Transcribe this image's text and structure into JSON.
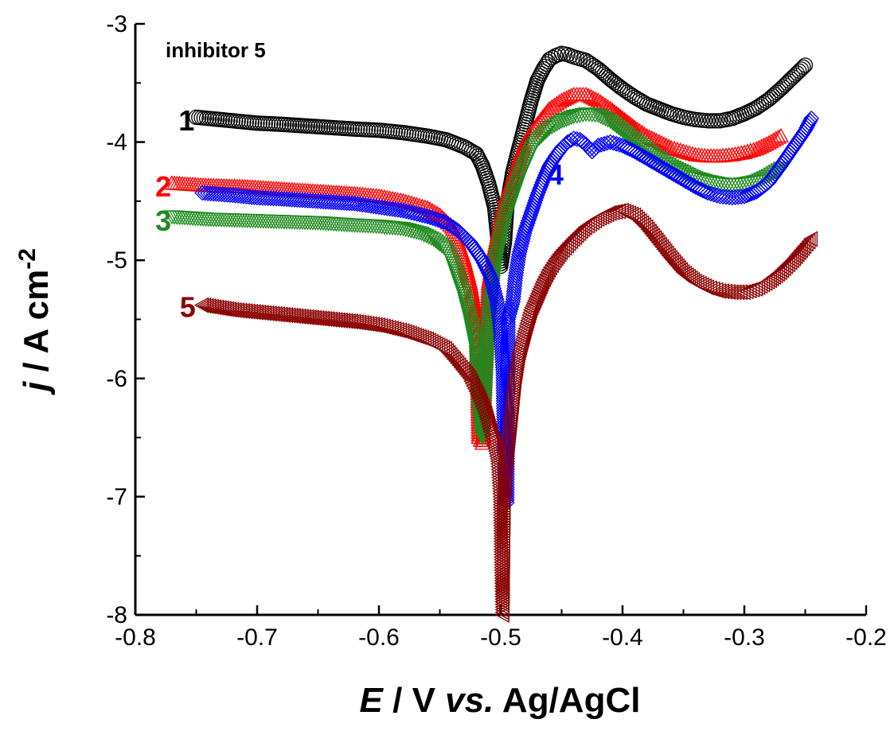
{
  "chart_data": {
    "type": "scatter",
    "title": "",
    "annotation": "inhibitor 5",
    "xlabel": {
      "italic": "E",
      "rest": " / V ",
      "italic2": "vs.",
      "rest2": " Ag/AgCl"
    },
    "ylabel": {
      "italic": "j",
      "rest": " / A cm",
      "sup": "-2"
    },
    "xlim": [
      -0.8,
      -0.2
    ],
    "ylim": [
      -8,
      -3
    ],
    "xticks": [
      -0.8,
      -0.7,
      -0.6,
      -0.5,
      -0.4,
      -0.3,
      -0.2
    ],
    "yticks": [
      -8,
      -7,
      -6,
      -5,
      -4,
      -3
    ],
    "xtick_labels": [
      "-0.8",
      "-0.7",
      "-0.6",
      "-0.5",
      "-0.4",
      "-0.3",
      "-0.2"
    ],
    "ytick_labels": [
      "-8",
      "-7",
      "-6",
      "-5",
      "-4",
      "-3"
    ],
    "grid": false,
    "series": [
      {
        "name": "1",
        "color": "#000000",
        "marker": "circle",
        "label_pos": [
          -0.758,
          -3.82
        ],
        "x": [
          -0.75,
          -0.72,
          -0.7,
          -0.68,
          -0.65,
          -0.62,
          -0.6,
          -0.58,
          -0.56,
          -0.545,
          -0.53,
          -0.52,
          -0.515,
          -0.51,
          -0.505,
          -0.5,
          -0.497,
          -0.495,
          -0.49,
          -0.485,
          -0.48,
          -0.475,
          -0.47,
          -0.465,
          -0.46,
          -0.455,
          -0.45,
          -0.445,
          -0.44,
          -0.43,
          -0.42,
          -0.41,
          -0.4,
          -0.39,
          -0.38,
          -0.37,
          -0.36,
          -0.35,
          -0.34,
          -0.33,
          -0.32,
          -0.31,
          -0.3,
          -0.29,
          -0.28,
          -0.27,
          -0.26,
          -0.25
        ],
        "y": [
          -3.79,
          -3.82,
          -3.84,
          -3.85,
          -3.87,
          -3.89,
          -3.9,
          -3.92,
          -3.95,
          -3.98,
          -4.04,
          -4.1,
          -4.2,
          -4.35,
          -4.55,
          -5.05,
          -4.85,
          -4.55,
          -4.25,
          -4.05,
          -3.85,
          -3.65,
          -3.48,
          -3.38,
          -3.3,
          -3.27,
          -3.25,
          -3.26,
          -3.28,
          -3.31,
          -3.38,
          -3.47,
          -3.55,
          -3.62,
          -3.68,
          -3.72,
          -3.76,
          -3.79,
          -3.81,
          -3.82,
          -3.82,
          -3.8,
          -3.76,
          -3.71,
          -3.64,
          -3.55,
          -3.45,
          -3.35
        ]
      },
      {
        "name": "2",
        "color": "#ff0000",
        "marker": "triangle-up",
        "label_pos": [
          -0.777,
          -4.38
        ],
        "x": [
          -0.77,
          -0.74,
          -0.71,
          -0.68,
          -0.65,
          -0.62,
          -0.6,
          -0.58,
          -0.56,
          -0.55,
          -0.54,
          -0.535,
          -0.53,
          -0.525,
          -0.52,
          -0.518,
          -0.515,
          -0.51,
          -0.505,
          -0.5,
          -0.495,
          -0.49,
          -0.485,
          -0.48,
          -0.47,
          -0.46,
          -0.45,
          -0.44,
          -0.43,
          -0.42,
          -0.41,
          -0.4,
          -0.39,
          -0.38,
          -0.37,
          -0.36,
          -0.35,
          -0.34,
          -0.33,
          -0.32,
          -0.31,
          -0.3,
          -0.29,
          -0.28,
          -0.27
        ],
        "y": [
          -4.35,
          -4.37,
          -4.38,
          -4.4,
          -4.42,
          -4.44,
          -4.46,
          -4.5,
          -4.56,
          -4.62,
          -4.72,
          -4.85,
          -5.0,
          -5.2,
          -5.5,
          -6.5,
          -6.55,
          -5.2,
          -4.9,
          -4.65,
          -4.45,
          -4.3,
          -4.15,
          -4.0,
          -3.85,
          -3.72,
          -3.65,
          -3.6,
          -3.6,
          -3.65,
          -3.72,
          -3.8,
          -3.88,
          -3.95,
          -4.0,
          -4.05,
          -4.08,
          -4.11,
          -4.12,
          -4.12,
          -4.11,
          -4.09,
          -4.06,
          -4.01,
          -3.95
        ]
      },
      {
        "name": "3",
        "color": "#1f8a1f",
        "marker": "triangle-down",
        "label_pos": [
          -0.777,
          -4.67
        ],
        "x": [
          -0.77,
          -0.74,
          -0.71,
          -0.68,
          -0.65,
          -0.62,
          -0.6,
          -0.58,
          -0.565,
          -0.555,
          -0.545,
          -0.54,
          -0.535,
          -0.53,
          -0.525,
          -0.52,
          -0.518,
          -0.515,
          -0.51,
          -0.505,
          -0.5,
          -0.495,
          -0.49,
          -0.485,
          -0.48,
          -0.475,
          -0.47,
          -0.46,
          -0.45,
          -0.44,
          -0.43,
          -0.42,
          -0.41,
          -0.4,
          -0.39,
          -0.38,
          -0.37,
          -0.36,
          -0.35,
          -0.34,
          -0.33,
          -0.32,
          -0.31,
          -0.3,
          -0.29,
          -0.28,
          -0.27
        ],
        "y": [
          -4.63,
          -4.65,
          -4.66,
          -4.67,
          -4.68,
          -4.7,
          -4.71,
          -4.73,
          -4.77,
          -4.82,
          -4.9,
          -5.0,
          -5.15,
          -5.3,
          -5.5,
          -5.75,
          -6.22,
          -6.5,
          -5.5,
          -5.05,
          -4.8,
          -4.6,
          -4.45,
          -4.3,
          -4.18,
          -4.06,
          -3.98,
          -3.88,
          -3.82,
          -3.78,
          -3.76,
          -3.77,
          -3.82,
          -3.9,
          -3.98,
          -4.06,
          -4.14,
          -4.2,
          -4.25,
          -4.3,
          -4.33,
          -4.35,
          -4.36,
          -4.35,
          -4.33,
          -4.28,
          -4.22
        ]
      },
      {
        "name": "4",
        "color": "#0000ff",
        "marker": "diamond",
        "label_pos": [
          -0.455,
          -4.28
        ],
        "x": [
          -0.745,
          -0.72,
          -0.7,
          -0.68,
          -0.65,
          -0.62,
          -0.6,
          -0.58,
          -0.56,
          -0.545,
          -0.535,
          -0.525,
          -0.515,
          -0.508,
          -0.503,
          -0.5,
          -0.498,
          -0.496,
          -0.495,
          -0.494,
          -0.49,
          -0.488,
          -0.485,
          -0.48,
          -0.475,
          -0.47,
          -0.465,
          -0.46,
          -0.455,
          -0.45,
          -0.445,
          -0.44,
          -0.435,
          -0.43,
          -0.425,
          -0.42,
          -0.41,
          -0.4,
          -0.39,
          -0.38,
          -0.37,
          -0.36,
          -0.35,
          -0.34,
          -0.33,
          -0.32,
          -0.31,
          -0.3,
          -0.29,
          -0.28,
          -0.27,
          -0.26,
          -0.25,
          -0.245
        ],
        "y": [
          -4.43,
          -4.45,
          -4.47,
          -4.48,
          -4.5,
          -4.52,
          -4.55,
          -4.58,
          -4.63,
          -4.68,
          -4.75,
          -4.85,
          -5.0,
          -5.15,
          -5.35,
          -5.6,
          -5.95,
          -7.02,
          -7.05,
          -5.5,
          -5.35,
          -5.15,
          -4.95,
          -4.75,
          -4.6,
          -4.45,
          -4.32,
          -4.2,
          -4.12,
          -4.05,
          -4.0,
          -3.97,
          -3.98,
          -4.02,
          -4.08,
          -4.03,
          -4.0,
          -4.03,
          -4.08,
          -4.14,
          -4.2,
          -4.26,
          -4.32,
          -4.38,
          -4.43,
          -4.46,
          -4.47,
          -4.46,
          -4.42,
          -4.34,
          -4.2,
          -4.05,
          -3.9,
          -3.8
        ]
      },
      {
        "name": "5",
        "color": "#8b0000",
        "marker": "triangle-left",
        "label_pos": [
          -0.757,
          -5.4
        ],
        "x": [
          -0.745,
          -0.72,
          -0.7,
          -0.68,
          -0.65,
          -0.62,
          -0.6,
          -0.58,
          -0.56,
          -0.545,
          -0.535,
          -0.525,
          -0.518,
          -0.512,
          -0.508,
          -0.505,
          -0.502,
          -0.5,
          -0.499,
          -0.498,
          -0.497,
          -0.495,
          -0.493,
          -0.49,
          -0.488,
          -0.485,
          -0.48,
          -0.475,
          -0.47,
          -0.465,
          -0.46,
          -0.455,
          -0.45,
          -0.44,
          -0.43,
          -0.42,
          -0.41,
          -0.4,
          -0.39,
          -0.38,
          -0.37,
          -0.36,
          -0.35,
          -0.34,
          -0.33,
          -0.32,
          -0.31,
          -0.3,
          -0.29,
          -0.28,
          -0.27,
          -0.26,
          -0.25,
          -0.245
        ],
        "y": [
          -5.38,
          -5.42,
          -5.44,
          -5.46,
          -5.49,
          -5.52,
          -5.55,
          -5.6,
          -5.67,
          -5.75,
          -5.87,
          -6.0,
          -6.15,
          -6.3,
          -6.45,
          -6.55,
          -6.7,
          -7.0,
          -7.6,
          -8.0,
          -7.05,
          -6.7,
          -6.5,
          -6.2,
          -6.0,
          -5.8,
          -5.6,
          -5.42,
          -5.3,
          -5.18,
          -5.08,
          -5.0,
          -4.93,
          -4.82,
          -4.72,
          -4.65,
          -4.6,
          -4.58,
          -4.62,
          -4.72,
          -4.85,
          -4.98,
          -5.1,
          -5.18,
          -5.23,
          -5.26,
          -5.27,
          -5.27,
          -5.24,
          -5.18,
          -5.1,
          -5.0,
          -4.88,
          -4.82
        ]
      }
    ]
  }
}
